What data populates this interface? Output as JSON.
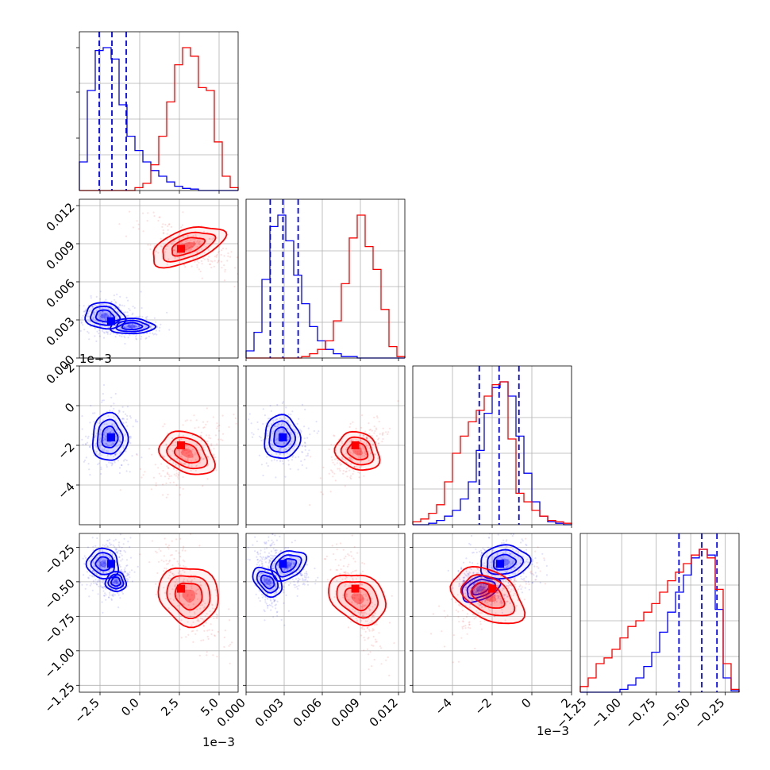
{
  "colors": {
    "blue": "#0000ff",
    "red": "#ff0000",
    "grid": "#b0b0b0",
    "axis": "#000000"
  },
  "chart_data": {
    "type": "corner",
    "grid": true,
    "parameters": [
      {
        "range": [
          -3.8,
          6.2
        ],
        "ticks": [
          -2.5,
          0.0,
          2.5,
          5.0
        ],
        "tick_labels": [
          "−2.5",
          "0.0",
          "2.5",
          "5.0"
        ],
        "offset_text": "1e−3"
      },
      {
        "range": [
          0.0,
          0.0125
        ],
        "ticks": [
          0.0,
          0.003,
          0.006,
          0.009,
          0.012
        ],
        "tick_labels": [
          "0.000",
          "0.003",
          "0.006",
          "0.009",
          "0.012"
        ],
        "offset_text": ""
      },
      {
        "range": [
          -6.0,
          2.0
        ],
        "ticks": [
          -4,
          -2,
          0,
          2
        ],
        "tick_labels": [
          "−4",
          "−2",
          "0",
          "2"
        ],
        "offset_text": "1e−3"
      },
      {
        "range": [
          -1.3,
          -0.15
        ],
        "ticks": [
          -1.25,
          -1.0,
          -0.75,
          -0.5,
          -0.25
        ],
        "tick_labels": [
          "−1.25",
          "−1.00",
          "−0.75",
          "−0.50",
          "−0.25"
        ],
        "offset_text": ""
      }
    ],
    "series": [
      {
        "color": "#0000ff",
        "histograms": [
          {
            "edges": [
              -3.8,
              -3.3,
              -2.8,
              -2.3,
              -1.8,
              -1.3,
              -0.8,
              -0.3,
              0.2,
              0.7,
              1.2,
              1.7,
              2.2,
              2.7,
              3.2,
              3.7,
              4.2,
              4.7,
              5.2,
              5.7,
              6.2
            ],
            "counts": [
              0.2,
              0.7,
              0.98,
              1.0,
              0.92,
              0.6,
              0.38,
              0.28,
              0.2,
              0.14,
              0.1,
              0.06,
              0.03,
              0.015,
              0.01,
              0,
              0,
              0,
              0,
              0
            ]
          },
          {
            "edges": [
              0.0,
              0.000625,
              0.00125,
              0.001875,
              0.0025,
              0.003125,
              0.00375,
              0.004375,
              0.005,
              0.005625,
              0.00625,
              0.006875,
              0.0075,
              0.008125,
              0.00875,
              0.009375,
              0.01,
              0.010625,
              0.01125,
              0.011875,
              0.0125
            ],
            "counts": [
              0.05,
              0.18,
              0.55,
              0.92,
              1.0,
              0.82,
              0.58,
              0.38,
              0.22,
              0.12,
              0.06,
              0.03,
              0.01,
              0.01,
              0,
              0,
              0,
              0,
              0,
              0
            ]
          },
          {
            "edges": [
              -6.0,
              -5.6,
              -5.2,
              -4.8,
              -4.4,
              -4.0,
              -3.6,
              -3.2,
              -2.8,
              -2.4,
              -2.0,
              -1.6,
              -1.2,
              -0.8,
              -0.4,
              0.0,
              0.4,
              0.8,
              1.2,
              1.6,
              2.0
            ],
            "counts": [
              0,
              0,
              0.01,
              0.03,
              0.06,
              0.1,
              0.18,
              0.3,
              0.52,
              0.78,
              0.96,
              1.0,
              0.9,
              0.62,
              0.36,
              0.16,
              0.06,
              0.02,
              0.01,
              0
            ]
          },
          {
            "edges": [
              -1.3,
              -1.2425,
              -1.185,
              -1.1275,
              -1.07,
              -1.0125,
              -0.955,
              -0.8975,
              -0.84,
              -0.7825,
              -0.725,
              -0.6675,
              -0.61,
              -0.5525,
              -0.495,
              -0.4375,
              -0.38,
              -0.3225,
              -0.265,
              -0.2075,
              -0.15
            ],
            "counts": [
              0,
              0,
              0,
              0,
              0,
              0.02,
              0.05,
              0.1,
              0.18,
              0.28,
              0.42,
              0.56,
              0.7,
              0.82,
              0.94,
              1.0,
              0.96,
              0.58,
              0.1,
              0.01
            ]
          }
        ],
        "quantiles": [
          [
            -2.55,
            -1.75,
            -0.85
          ],
          [
            0.0019,
            0.0029,
            0.0041
          ],
          [
            -2.65,
            -1.65,
            -0.65
          ],
          [
            -0.585,
            -0.42,
            -0.31
          ]
        ],
        "centers": [
          [
            -1.8,
            0.0029,
            -1.6,
            -0.37
          ]
        ],
        "pair_shapes": {
          "1,0": [
            [
              -2.2,
              0.0033,
              1.2,
              0.0011,
              -0.2
            ],
            [
              -0.5,
              0.0025,
              1.4,
              0.0006,
              0
            ]
          ],
          "2,0": [
            [
              -1.9,
              -1.6,
              1.1,
              1.2,
              0
            ]
          ],
          "2,1": [
            [
              0.0028,
              -1.6,
              0.0014,
              1.1,
              0
            ]
          ],
          "3,0": [
            [
              -2.3,
              -0.37,
              0.9,
              0.13,
              -0.5
            ],
            [
              -1.5,
              -0.5,
              0.6,
              0.08,
              -0.3
            ]
          ],
          "3,1": [
            [
              0.0033,
              -0.38,
              0.0013,
              0.12,
              0.6
            ],
            [
              0.0017,
              -0.5,
              0.0008,
              0.15,
              0.5
            ]
          ],
          "3,2": [
            [
              -1.4,
              -0.36,
              1.2,
              0.13,
              0.2
            ],
            [
              -2.6,
              -0.55,
              0.9,
              0.1,
              0.5
            ]
          ]
        }
      },
      {
        "color": "#ff0000",
        "histograms": [
          {
            "edges": [
              -3.8,
              -3.3,
              -2.8,
              -2.3,
              -1.8,
              -1.3,
              -0.8,
              -0.3,
              0.2,
              0.7,
              1.2,
              1.7,
              2.2,
              2.7,
              3.2,
              3.7,
              4.2,
              4.7,
              5.2,
              5.7,
              6.2
            ],
            "counts": [
              0,
              0,
              0,
              0,
              0,
              0,
              0,
              0.02,
              0.05,
              0.18,
              0.38,
              0.62,
              0.88,
              1.0,
              0.94,
              0.72,
              0.7,
              0.34,
              0.1,
              0.02
            ]
          },
          {
            "edges": [
              0.0,
              0.000625,
              0.00125,
              0.001875,
              0.0025,
              0.003125,
              0.00375,
              0.004375,
              0.005,
              0.005625,
              0.00625,
              0.006875,
              0.0075,
              0.008125,
              0.00875,
              0.009375,
              0.01,
              0.010625,
              0.01125,
              0.011875,
              0.0125
            ],
            "counts": [
              0,
              0,
              0,
              0,
              0,
              0,
              0,
              0.01,
              0.03,
              0.06,
              0.12,
              0.26,
              0.52,
              0.84,
              1.0,
              0.78,
              0.62,
              0.34,
              0.08,
              0.01
            ]
          },
          {
            "edges": [
              -6.0,
              -5.6,
              -5.2,
              -4.8,
              -4.4,
              -4.0,
              -3.6,
              -3.2,
              -2.8,
              -2.4,
              -2.0,
              -1.6,
              -1.2,
              -0.8,
              -0.4,
              0.0,
              0.4,
              0.8,
              1.2,
              1.6,
              2.0
            ],
            "counts": [
              0.02,
              0.04,
              0.08,
              0.14,
              0.3,
              0.5,
              0.62,
              0.72,
              0.8,
              0.9,
              0.98,
              1.0,
              0.6,
              0.22,
              0.16,
              0.1,
              0.06,
              0.03,
              0.02,
              0.01
            ]
          },
          {
            "edges": [
              -1.3,
              -1.2425,
              -1.185,
              -1.1275,
              -1.07,
              -1.0125,
              -0.955,
              -0.8975,
              -0.84,
              -0.7825,
              -0.725,
              -0.6675,
              -0.61,
              -0.5525,
              -0.495,
              -0.4375,
              -0.38,
              -0.3225,
              -0.265,
              -0.2075,
              -0.15
            ],
            "counts": [
              0.04,
              0.1,
              0.2,
              0.24,
              0.3,
              0.38,
              0.46,
              0.5,
              0.56,
              0.62,
              0.7,
              0.78,
              0.84,
              0.9,
              0.96,
              1.0,
              0.94,
              0.72,
              0.2,
              0.02
            ]
          }
        ],
        "quantiles": [],
        "centers": [
          [
            2.6,
            0.0086,
            -2.0,
            -0.55
          ]
        ],
        "pair_shapes": {
          "1,0": [
            [
              3.0,
              0.0088,
              2.1,
              0.0016,
              0.6
            ]
          ],
          "2,0": [
            [
              3.0,
              -2.4,
              1.6,
              1.2,
              -0.55
            ]
          ],
          "2,1": [
            [
              0.0088,
              -2.3,
              0.0016,
              1.1,
              -0.5
            ]
          ],
          "3,0": [
            [
              3.1,
              -0.6,
              1.5,
              0.3,
              0.7
            ]
          ],
          "3,1": [
            [
              0.0088,
              -0.62,
              0.0015,
              0.3,
              0.75
            ]
          ],
          "3,2": [
            [
              -2.2,
              -0.6,
              1.7,
              0.22,
              -0.65
            ]
          ]
        }
      }
    ]
  }
}
